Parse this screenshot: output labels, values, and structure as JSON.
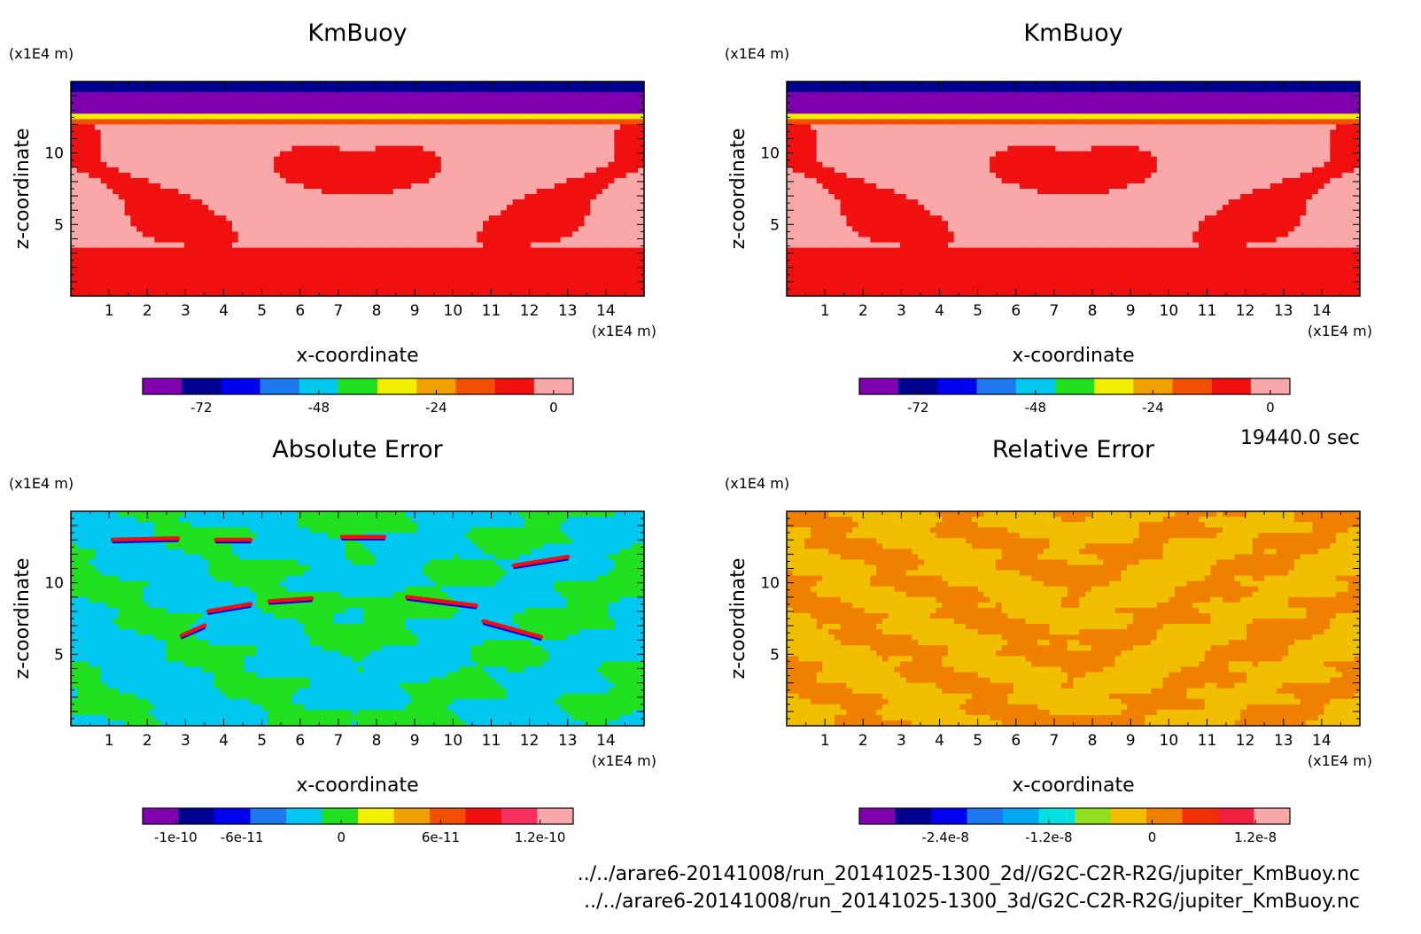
{
  "figure": {
    "time_label": "19440.0 sec",
    "files": [
      "../../arare6-20141008/run_20141025-1300_2d//G2C-C2R-R2G/jupiter_KmBuoy.nc",
      "../../arare6-20141008/run_20141025-1300_3d/G2C-C2R-R2G/jupiter_KmBuoy.nc"
    ]
  },
  "chart_data": [
    {
      "type": "heatmap",
      "title": "KmBuoy",
      "xlabel": "x-coordinate",
      "ylabel": "z-coordinate",
      "x_unit": "(x1E4 m)",
      "z_unit": "(x1E4 m)",
      "xlim": [
        0,
        15
      ],
      "zlim": [
        0,
        15
      ],
      "x_ticks": [
        1,
        2,
        3,
        4,
        5,
        6,
        7,
        8,
        9,
        10,
        11,
        12,
        13,
        14
      ],
      "z_ticks": [
        5,
        10
      ],
      "colorbar": {
        "colors": [
          "#8000b0",
          "#000090",
          "#0000f0",
          "#1e78f0",
          "#00c8f0",
          "#20e020",
          "#f0f000",
          "#f0a000",
          "#f05000",
          "#f01010",
          "#f8a8a8"
        ],
        "tick_labels": [
          "-72",
          "-48",
          "-24",
          "0"
        ],
        "tick_values": [
          -72,
          -48,
          -24,
          0
        ],
        "range": [
          -84,
          4
        ]
      },
      "field_pattern": "kmbuoy"
    },
    {
      "type": "heatmap",
      "title": "KmBuoy",
      "xlabel": "x-coordinate",
      "ylabel": "z-coordinate",
      "x_unit": "(x1E4 m)",
      "z_unit": "(x1E4 m)",
      "xlim": [
        0,
        15
      ],
      "zlim": [
        0,
        15
      ],
      "x_ticks": [
        1,
        2,
        3,
        4,
        5,
        6,
        7,
        8,
        9,
        10,
        11,
        12,
        13,
        14
      ],
      "z_ticks": [
        5,
        10
      ],
      "colorbar": {
        "colors": [
          "#8000b0",
          "#000090",
          "#0000f0",
          "#1e78f0",
          "#00c8f0",
          "#20e020",
          "#f0f000",
          "#f0a000",
          "#f05000",
          "#f01010",
          "#f8a8a8"
        ],
        "tick_labels": [
          "-72",
          "-48",
          "-24",
          "0"
        ],
        "tick_values": [
          -72,
          -48,
          -24,
          0
        ],
        "range": [
          -84,
          4
        ]
      },
      "field_pattern": "kmbuoy"
    },
    {
      "type": "heatmap",
      "title": "Absolute Error",
      "xlabel": "x-coordinate",
      "ylabel": "z-coordinate",
      "x_unit": "(x1E4 m)",
      "z_unit": "(x1E4 m)",
      "xlim": [
        0,
        15
      ],
      "zlim": [
        0,
        15
      ],
      "x_ticks": [
        1,
        2,
        3,
        4,
        5,
        6,
        7,
        8,
        9,
        10,
        11,
        12,
        13,
        14
      ],
      "z_ticks": [
        5,
        10
      ],
      "colorbar": {
        "colors": [
          "#8000b0",
          "#000090",
          "#0000f0",
          "#1e78f0",
          "#00c8f0",
          "#20e020",
          "#f0f000",
          "#f0a000",
          "#f05000",
          "#f01010",
          "#f83060",
          "#f8a8a8"
        ],
        "tick_labels": [
          "-1e-10",
          "-6e-11",
          "0",
          "6e-11",
          "1.2e-10"
        ],
        "tick_values": [
          -1e-10,
          -6e-11,
          0,
          6e-11,
          1.2e-10
        ],
        "range": [
          -1.2e-10,
          1.4e-10
        ]
      },
      "field_pattern": "abs_error"
    },
    {
      "type": "heatmap",
      "title": "Relative Error",
      "xlabel": "x-coordinate",
      "ylabel": "z-coordinate",
      "x_unit": "(x1E4 m)",
      "z_unit": "(x1E4 m)",
      "xlim": [
        0,
        15
      ],
      "zlim": [
        0,
        15
      ],
      "x_ticks": [
        1,
        2,
        3,
        4,
        5,
        6,
        7,
        8,
        9,
        10,
        11,
        12,
        13,
        14
      ],
      "z_ticks": [
        5,
        10
      ],
      "colorbar": {
        "colors": [
          "#8000b0",
          "#000090",
          "#0000f0",
          "#1e78f0",
          "#00a8f0",
          "#00e0e0",
          "#90e020",
          "#f0c000",
          "#f08000",
          "#f03000",
          "#f02040",
          "#f8a8a8"
        ],
        "tick_labels": [
          "-2.4e-8",
          "-1.2e-8",
          "0",
          "1.2e-8"
        ],
        "tick_values": [
          -2.4e-08,
          -1.2e-08,
          0,
          1.2e-08
        ],
        "range": [
          -3.4e-08,
          1.6e-08
        ]
      },
      "field_pattern": "rel_error"
    }
  ]
}
